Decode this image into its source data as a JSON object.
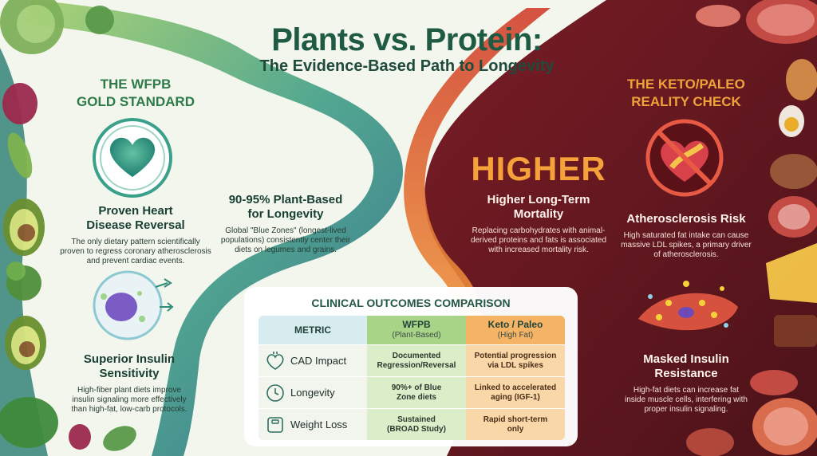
{
  "title": "Plants vs. Protein:",
  "subtitle": "The Evidence-Based Path to Longevity",
  "left": {
    "heading_line1": "THE WFPB",
    "heading_line2": "GOLD STANDARD",
    "cards": [
      {
        "icon": "heart-icon",
        "title_line1": "Proven Heart",
        "title_line2": "Disease Reversal",
        "body_line1": "The only dietary pattern scientifically",
        "body_line2": "proven to regress coronary atherosclerosis",
        "body_line3": "and prevent cardiac events."
      },
      {
        "icon": "cell-icon",
        "title_line1": "Superior Insulin",
        "title_line2": "Sensitivity",
        "body_line1": "High-fiber plant diets improve",
        "body_line2": "insulin signaling more effectively",
        "body_line3": "than high-fat, low-carb protocols."
      }
    ]
  },
  "center": {
    "title_line1": "90-95% Plant-Based",
    "title_line2": "for Longevity",
    "body_line1": "Global \"Blue Zones\" (longest-lived",
    "body_line2": "populations) consistently center their",
    "body_line3": "diets on legumes and grains."
  },
  "right": {
    "heading_line1": "THE KETO/PALEO",
    "heading_line2": "REALITY CHECK",
    "higher_word": "HIGHER",
    "mortality": {
      "title_line1": "Higher Long-Term",
      "title_line2": "Mortality",
      "body_line1": "Replacing carbohydrates with animal-",
      "body_line2": "derived proteins and fats is associated",
      "body_line3": "with increased mortality risk."
    },
    "cards": [
      {
        "icon": "blocked-heart-icon",
        "title_line1": "Atherosclerosis Risk",
        "body_line1": "High saturated fat intake can cause",
        "body_line2": "massive LDL spikes, a primary driver",
        "body_line3": "of atherosclerosis."
      },
      {
        "icon": "muscle-fat-icon",
        "title_line1": "Masked Insulin",
        "title_line2": "Resistance",
        "body_line1": "High-fat diets can increase fat",
        "body_line2": "inside muscle cells, interfering with",
        "body_line3": "proper insulin signaling."
      }
    ]
  },
  "table": {
    "title": "CLINICAL OUTCOMES COMPARISON",
    "headers": {
      "metric": "METRIC",
      "wfpb": "WFPB",
      "wfpb_sub": "(Plant-Based)",
      "keto": "Keto / Paleo",
      "keto_sub": "(High Fat)"
    },
    "rows": [
      {
        "icon": "heart-anatomy-icon",
        "metric": "CAD Impact",
        "wfpb_line1": "Documented",
        "wfpb_line2": "Regression/Reversal",
        "keto_line1": "Potential progression",
        "keto_line2": "via LDL spikes"
      },
      {
        "icon": "clock-icon",
        "metric": "Longevity",
        "wfpb_line1": "90%+ of Blue",
        "wfpb_line2": "Zone diets",
        "keto_line1": "Linked to accelerated",
        "keto_line2": "aging (IGF-1)"
      },
      {
        "icon": "scale-icon",
        "metric": "Weight Loss",
        "wfpb_line1": "Sustained",
        "wfpb_line2": "(BROAD Study)",
        "keto_line1": "Rapid short-term",
        "keto_line2": "only"
      }
    ]
  },
  "colors": {
    "title_green": "#1f5a45",
    "left_heading_green": "#2e7b49",
    "right_heading_orange": "#f0a23a",
    "dark_red_panel": "#6b1a22",
    "teal_ribbon": "#3d9a95",
    "orange_ribbon": "#e2703a"
  }
}
